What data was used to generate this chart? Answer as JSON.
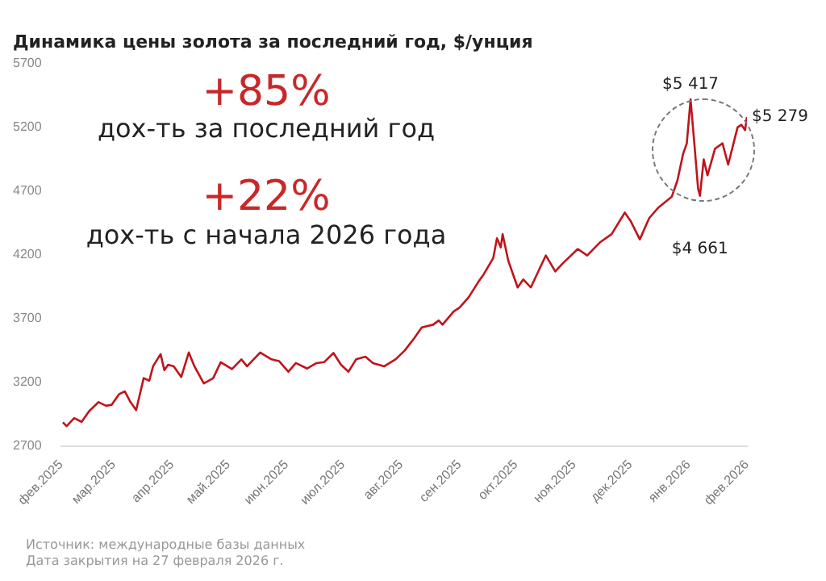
{
  "chart_data": {
    "type": "line",
    "title": "Динамика цены золота за последний год, $/унция",
    "annotations": [
      "+85%",
      "дох-ть за последний год",
      "+22%",
      "дох-ть с начала 2026 года",
      "Источник: международные базы данных",
      "Дата закрытия на 27 февраля 2026 г.",
      {
        "text": "$5 417",
        "x": "2026-01-28",
        "y": 5417
      },
      {
        "text": "$4 661",
        "x": "2026-02-02",
        "y": 4661
      },
      {
        "text": "$5 279",
        "x": "2026-02-27",
        "y": 5279
      }
    ],
    "x": [
      "2025-02-28",
      "2025-03-02",
      "2025-03-06",
      "2025-03-10",
      "2025-03-14",
      "2025-03-19",
      "2025-03-23",
      "2025-03-26",
      "2025-03-30",
      "2025-04-02",
      "2025-04-05",
      "2025-04-08",
      "2025-04-12",
      "2025-04-15",
      "2025-04-17",
      "2025-04-21",
      "2025-04-23",
      "2025-04-25",
      "2025-04-28",
      "2025-05-02",
      "2025-05-06",
      "2025-05-09",
      "2025-05-14",
      "2025-05-19",
      "2025-05-23",
      "2025-05-29",
      "2025-06-03",
      "2025-06-06",
      "2025-06-13",
      "2025-06-19",
      "2025-06-23",
      "2025-06-28",
      "2025-07-02",
      "2025-07-08",
      "2025-07-13",
      "2025-07-17",
      "2025-07-22",
      "2025-07-26",
      "2025-07-30",
      "2025-08-03",
      "2025-08-08",
      "2025-08-12",
      "2025-08-18",
      "2025-08-24",
      "2025-08-29",
      "2025-09-03",
      "2025-09-07",
      "2025-09-13",
      "2025-09-16",
      "2025-09-18",
      "2025-09-24",
      "2025-09-27",
      "2025-10-02",
      "2025-10-07",
      "2025-10-09",
      "2025-10-10",
      "2025-10-15",
      "2025-10-17",
      "2025-10-19",
      "2025-10-20",
      "2025-10-23",
      "2025-10-26",
      "2025-10-28",
      "2025-10-31",
      "2025-11-04",
      "2025-11-08",
      "2025-11-12",
      "2025-11-17",
      "2025-11-21",
      "2025-11-29",
      "2025-12-04",
      "2025-12-11",
      "2025-12-17",
      "2025-12-24",
      "2025-12-27",
      "2026-01-01",
      "2026-01-06",
      "2026-01-11",
      "2026-01-18",
      "2026-01-21",
      "2026-01-24",
      "2026-01-26",
      "2026-01-28",
      "2026-01-30",
      "2026-02-01",
      "2026-02-02",
      "2026-02-04",
      "2026-02-06",
      "2026-02-10",
      "2026-02-14",
      "2026-02-17",
      "2026-02-22",
      "2026-02-24",
      "2026-02-26",
      "2026-02-27"
    ],
    "series": [
      {
        "color": "#c0141c",
        "values": [
          2884,
          2854,
          2917,
          2888,
          2972,
          3043,
          3014,
          3022,
          3106,
          3127,
          3043,
          2980,
          3231,
          3211,
          3324,
          3419,
          3294,
          3336,
          3324,
          3240,
          3432,
          3324,
          3189,
          3231,
          3356,
          3302,
          3378,
          3324,
          3432,
          3378,
          3365,
          3281,
          3349,
          3306,
          3349,
          3356,
          3428,
          3336,
          3281,
          3378,
          3399,
          3349,
          3324,
          3378,
          3449,
          3545,
          3629,
          3650,
          3683,
          3650,
          3754,
          3783,
          3867,
          3984,
          4026,
          4047,
          4172,
          4328,
          4256,
          4360,
          4152,
          4026,
          3942,
          4005,
          3942,
          4068,
          4193,
          4068,
          4131,
          4244,
          4193,
          4298,
          4360,
          4529,
          4466,
          4319,
          4486,
          4570,
          4654,
          4780,
          4988,
          5072,
          5417,
          5072,
          4717,
          4661,
          4946,
          4821,
          5030,
          5072,
          4905,
          5197,
          5218,
          5176,
          5279
        ]
      }
    ],
    "xlim": [
      "2025-02-27",
      "2026-02-27"
    ],
    "xticks": [
      {
        "value": "2025-02-27",
        "label": "фев.2025"
      },
      {
        "value": "2025-03-27",
        "label": "мар.2025"
      },
      {
        "value": "2025-04-27",
        "label": "апр.2025"
      },
      {
        "value": "2025-05-27",
        "label": "май.2025"
      },
      {
        "value": "2025-06-27",
        "label": "июн.2025"
      },
      {
        "value": "2025-07-27",
        "label": "июл.2025"
      },
      {
        "value": "2025-08-27",
        "label": "авг.2025"
      },
      {
        "value": "2025-09-27",
        "label": "сен.2025"
      },
      {
        "value": "2025-10-27",
        "label": "окт.2025"
      },
      {
        "value": "2025-11-27",
        "label": "ноя.2025"
      },
      {
        "value": "2025-12-27",
        "label": "дек.2025"
      },
      {
        "value": "2026-01-27",
        "label": "янв.2026"
      },
      {
        "value": "2026-02-27",
        "label": "фев.2026"
      }
    ],
    "ylim": [
      2700,
      5700
    ],
    "yticks": [
      2700,
      3200,
      3700,
      4200,
      4700,
      5200,
      5700
    ],
    "grid": false,
    "legend": false,
    "marker": "none",
    "line_style": "solid"
  }
}
